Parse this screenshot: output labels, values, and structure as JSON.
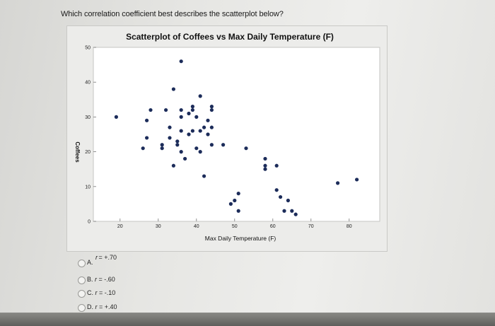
{
  "question": {
    "text": "Which correlation coefficient best describes the scatterplot below?"
  },
  "chart_data": {
    "type": "scatter",
    "title": "Scatterplot of Coffees vs Max Daily Temperature (F)",
    "xlabel": "Max Daily Temperature (F)",
    "ylabel": "Coffees",
    "xlim": [
      13,
      88
    ],
    "ylim": [
      0,
      50
    ],
    "xticks": [
      "20",
      "30",
      "40",
      "50",
      "60",
      "70",
      "80"
    ],
    "yticks": [
      "0",
      "10",
      "20",
      "30",
      "40",
      "50"
    ],
    "grid": false,
    "marker_color": "#1c2c5a",
    "points": [
      [
        36,
        46
      ],
      [
        34,
        38
      ],
      [
        41,
        36
      ],
      [
        44,
        33
      ],
      [
        28,
        32
      ],
      [
        32,
        32
      ],
      [
        36,
        32
      ],
      [
        36,
        30
      ],
      [
        38,
        31
      ],
      [
        39,
        33
      ],
      [
        39,
        32
      ],
      [
        44,
        32
      ],
      [
        40,
        30
      ],
      [
        43,
        29
      ],
      [
        19,
        30
      ],
      [
        27,
        29
      ],
      [
        33,
        27
      ],
      [
        36,
        26
      ],
      [
        39,
        26
      ],
      [
        42,
        27
      ],
      [
        43,
        25
      ],
      [
        33,
        24
      ],
      [
        35,
        23
      ],
      [
        35,
        22
      ],
      [
        38,
        25
      ],
      [
        41,
        26
      ],
      [
        44,
        27
      ],
      [
        44,
        22
      ],
      [
        47,
        22
      ],
      [
        41,
        20
      ],
      [
        27,
        24
      ],
      [
        26,
        21
      ],
      [
        31,
        21
      ],
      [
        31,
        22
      ],
      [
        40,
        21
      ],
      [
        53,
        21
      ],
      [
        36,
        20
      ],
      [
        37,
        18
      ],
      [
        34,
        16
      ],
      [
        42,
        13
      ],
      [
        58,
        18
      ],
      [
        58,
        16
      ],
      [
        58,
        15
      ],
      [
        61,
        16
      ],
      [
        51,
        8
      ],
      [
        50,
        6
      ],
      [
        49,
        5
      ],
      [
        51,
        3
      ],
      [
        61,
        9
      ],
      [
        62,
        7
      ],
      [
        64,
        6
      ],
      [
        63,
        3
      ],
      [
        65,
        3
      ],
      [
        66,
        2
      ],
      [
        77,
        11
      ],
      [
        82,
        12
      ]
    ]
  },
  "options": [
    {
      "letter": "A.",
      "r": "r",
      "value": " = +.70"
    },
    {
      "letter": "B.",
      "r": "r",
      "value": " = -.60"
    },
    {
      "letter": "C.",
      "r": "r",
      "value": " = -.10"
    },
    {
      "letter": "D.",
      "r": "r",
      "value": " = +.40"
    }
  ]
}
